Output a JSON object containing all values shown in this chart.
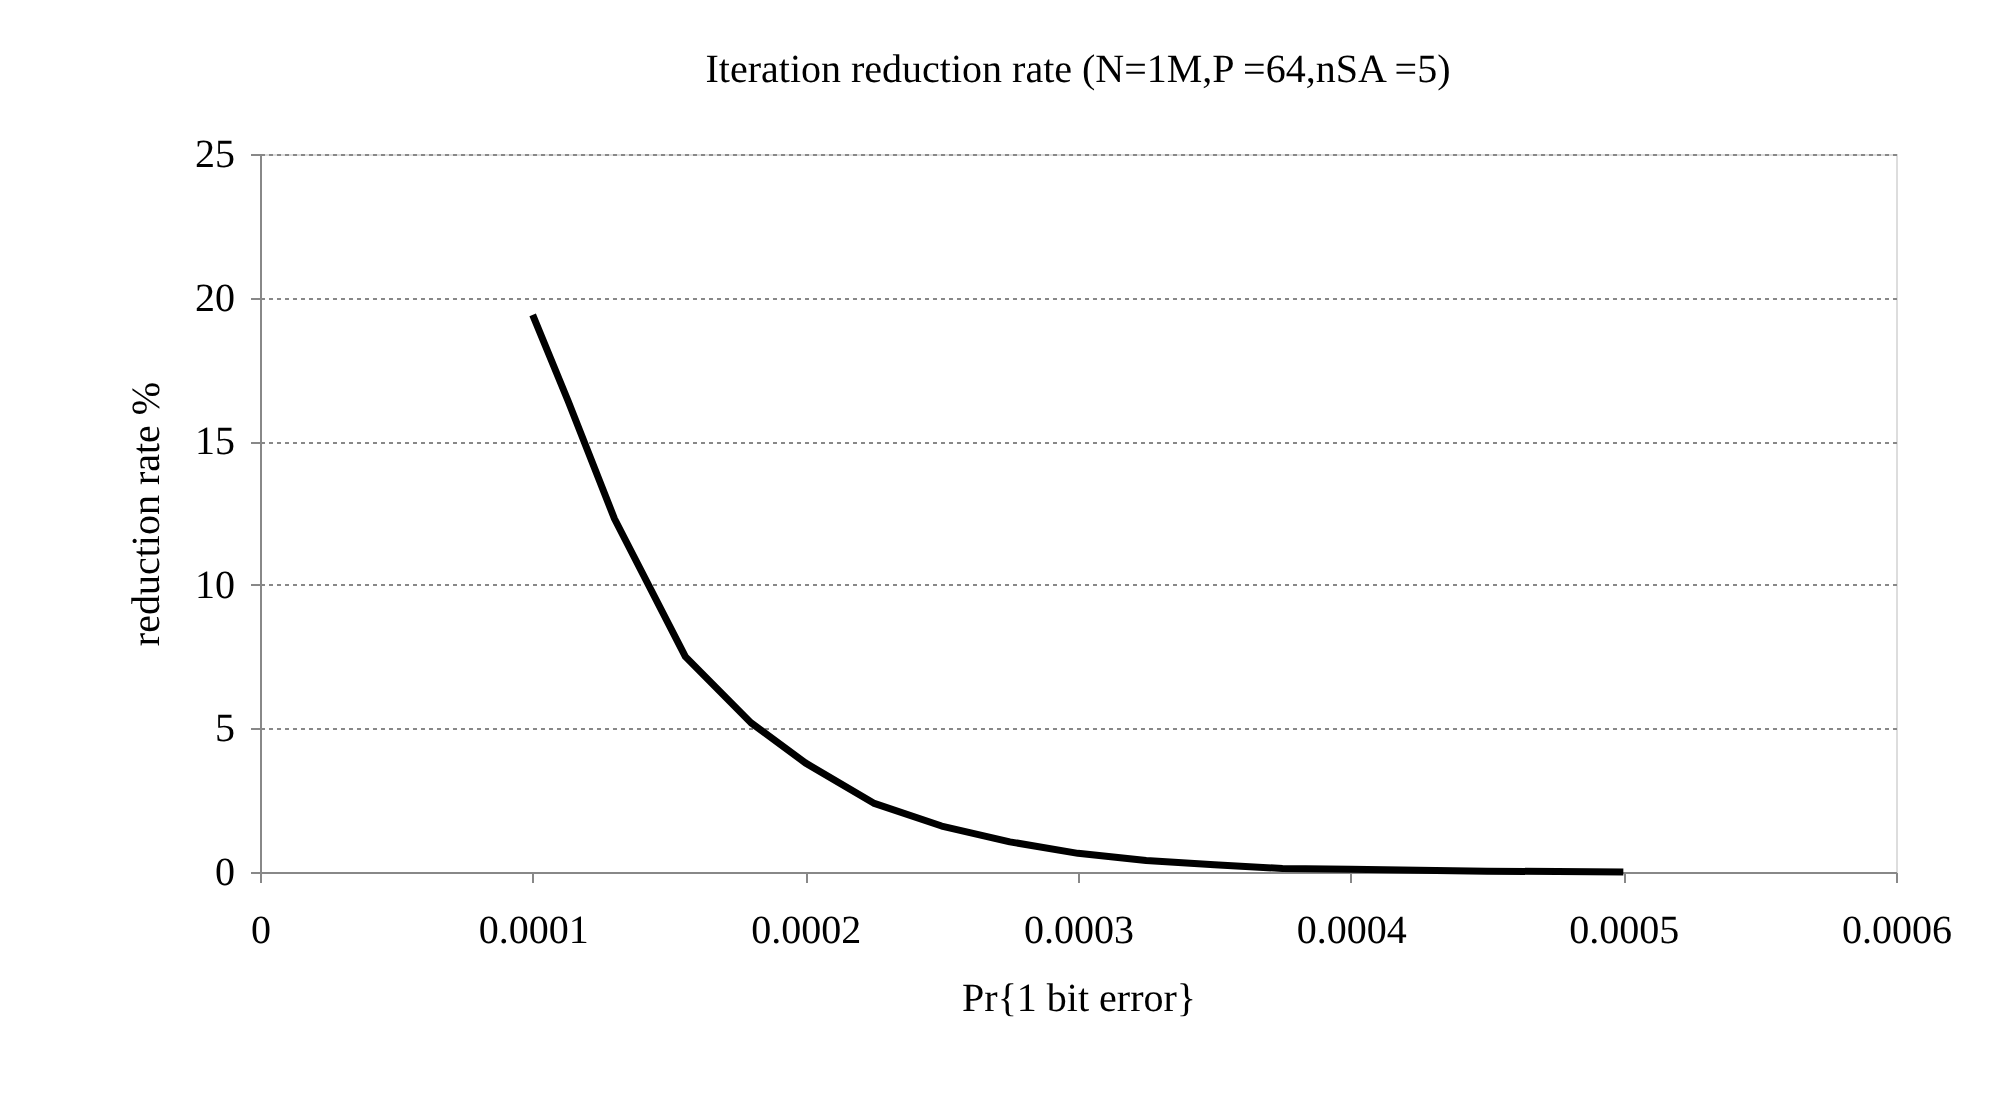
{
  "chart_data": {
    "type": "line",
    "title": "Iteration reduction rate (N=1M,P =64,nSA =5)",
    "xlabel": "Pr{1 bit error}",
    "ylabel": "reduction rate %",
    "x": [
      0.0001,
      0.000113,
      0.00013,
      0.000156,
      0.00018,
      0.0002,
      0.000225,
      0.00025,
      0.000275,
      0.0003,
      0.000325,
      0.00035,
      0.000375,
      0.0004,
      0.00045,
      0.0005
    ],
    "series": [
      {
        "color": "#000000",
        "values": [
          19.4,
          16.4,
          12.3,
          7.5,
          5.2,
          3.8,
          2.4,
          1.6,
          1.05,
          0.65,
          0.4,
          0.25,
          0.12,
          0.1,
          0.03,
          0
        ]
      }
    ],
    "xlim": [
      0,
      0.0006
    ],
    "xticks": [
      0,
      0.0001,
      0.0002,
      0.0003,
      0.0004,
      0.0005,
      0.0006
    ],
    "ylim": [
      0,
      25
    ],
    "yticks": [
      0,
      5,
      10,
      15,
      20,
      25
    ],
    "grid": "y",
    "legend": false,
    "marker": "none",
    "line_style": "solid"
  }
}
